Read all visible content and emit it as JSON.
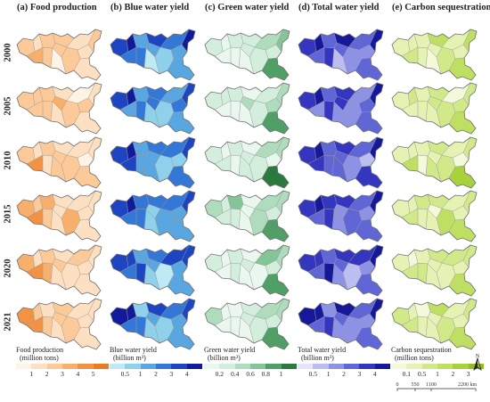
{
  "figure": {
    "columns": [
      {
        "key": "food",
        "title": "(a) Food production",
        "colors": [
          "#fff3e6",
          "#fde0c2",
          "#fbca98",
          "#f7b06c",
          "#f29244",
          "#ec7a1f"
        ],
        "legend_title": "Food production",
        "legend_unit": "(million tons)",
        "ticks": [
          "1",
          "2",
          "3",
          "4",
          "5"
        ]
      },
      {
        "key": "blue",
        "title": "(b) Blue water yield",
        "colors": [
          "#bfe9f5",
          "#8fd0ea",
          "#5aa6e0",
          "#3378d6",
          "#1d45c2",
          "#101a9a"
        ],
        "legend_title": "Blue water yield",
        "legend_unit": "(billion m³)",
        "ticks": [
          "0.5",
          "1",
          "2",
          "3",
          "4"
        ]
      },
      {
        "key": "green",
        "title": "(c) Green water yield",
        "colors": [
          "#eaf7ef",
          "#d3eedc",
          "#aedcbc",
          "#83c597",
          "#4f9f67",
          "#2a7a3f"
        ],
        "legend_title": "Green water yield",
        "legend_unit": "(billion m³)",
        "ticks": [
          "0.2",
          "0.4",
          "0.6",
          "0.8",
          "1"
        ]
      },
      {
        "key": "total",
        "title": "(d) Total water yield",
        "colors": [
          "#e3e4fb",
          "#bcbef2",
          "#8e92e4",
          "#6166d7",
          "#3436c0",
          "#16189a"
        ],
        "legend_title": "Total water yield",
        "legend_unit": "(billion m³)",
        "ticks": [
          "0.5",
          "1",
          "2",
          "3",
          "4"
        ]
      },
      {
        "key": "carbon",
        "title": "(e) Carbon sequestration",
        "colors": [
          "#f4f9dc",
          "#e5f2b4",
          "#d2e98a",
          "#bfdf63",
          "#a9d13b",
          "#93bf1c"
        ],
        "legend_title": "Carbon sequestration",
        "legend_unit": "(million tons)",
        "ticks": [
          "0.1",
          "0.5",
          "1",
          "2",
          "3"
        ]
      }
    ],
    "rows": [
      "2000",
      "2005",
      "2010",
      "2015",
      "2020",
      "2021"
    ],
    "scale_bar": {
      "labels": [
        "0",
        "550",
        "1100",
        "2200 km"
      ]
    },
    "north_arrow": "N"
  }
}
